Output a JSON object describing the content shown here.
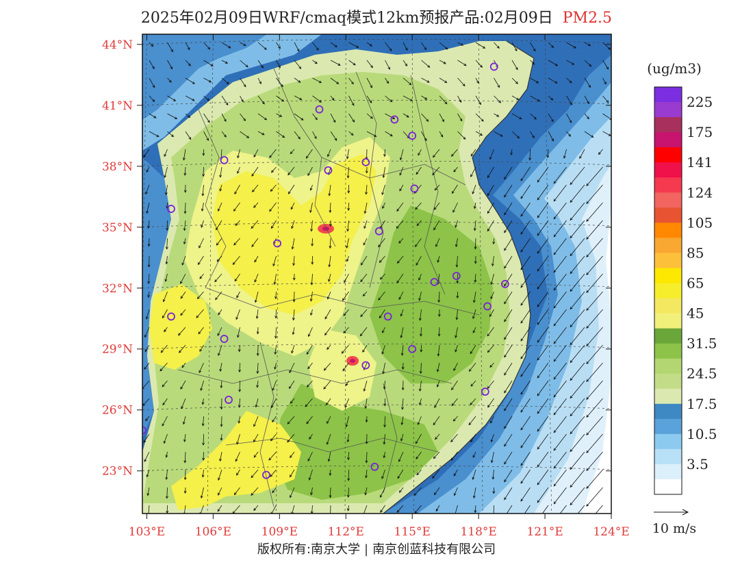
{
  "title": {
    "main": "2025年02月09日WRF/cmaq模式12km预报产品:02月09日",
    "pollutant": "PM2.5"
  },
  "map": {
    "lat_labels": [
      "23°N",
      "26°N",
      "29°N",
      "32°N",
      "35°N",
      "38°N",
      "41°N",
      "44°N"
    ],
    "lon_labels": [
      "103°E",
      "106°E",
      "109°E",
      "112°E",
      "115°E",
      "118°E",
      "121°E",
      "124°E"
    ],
    "label_color": "#e03a3a",
    "ocean_colors": [
      "#2f6fb8",
      "#4a8fce",
      "#7fbde8",
      "#b9def4",
      "#dff0fa",
      "#ffffff"
    ],
    "land_colors": [
      "#6aa63a",
      "#8cc348",
      "#b9da7a",
      "#dbe9b0",
      "#eef38a",
      "#f5f04a",
      "#f8e35a"
    ],
    "hotspot_color": "#f04a4a",
    "city_marker_color": "#7a22d6",
    "cities": [
      {
        "lon": 118.7,
        "lat": 42.9
      },
      {
        "lon": 110.8,
        "lat": 40.8
      },
      {
        "lon": 114.2,
        "lat": 40.3
      },
      {
        "lon": 115.0,
        "lat": 39.5
      },
      {
        "lon": 106.5,
        "lat": 38.3
      },
      {
        "lon": 111.2,
        "lat": 37.8
      },
      {
        "lon": 112.9,
        "lat": 38.2
      },
      {
        "lon": 115.1,
        "lat": 36.9
      },
      {
        "lon": 104.1,
        "lat": 35.9
      },
      {
        "lon": 113.5,
        "lat": 34.8
      },
      {
        "lon": 108.9,
        "lat": 34.2
      },
      {
        "lon": 117.0,
        "lat": 32.6
      },
      {
        "lon": 116.0,
        "lat": 32.3
      },
      {
        "lon": 119.2,
        "lat": 32.2
      },
      {
        "lon": 118.4,
        "lat": 31.1
      },
      {
        "lon": 104.1,
        "lat": 30.6
      },
      {
        "lon": 113.9,
        "lat": 30.6
      },
      {
        "lon": 106.5,
        "lat": 29.5
      },
      {
        "lon": 115.0,
        "lat": 29.0
      },
      {
        "lon": 112.9,
        "lat": 28.2
      },
      {
        "lon": 118.3,
        "lat": 26.9
      },
      {
        "lon": 106.7,
        "lat": 26.5
      },
      {
        "lon": 102.8,
        "lat": 25.0
      },
      {
        "lon": 108.4,
        "lat": 22.8
      },
      {
        "lon": 113.3,
        "lat": 23.2
      }
    ]
  },
  "colorbar": {
    "units": "(ug/m3)",
    "colors": [
      "#7b2fe0",
      "#9a3bd0",
      "#a8305c",
      "#c8146e",
      "#ff0000",
      "#f0104a",
      "#f53a50",
      "#f26460",
      "#e85432",
      "#ff8800",
      "#f9a832",
      "#fdc03a",
      "#fce800",
      "#f6ee2a",
      "#f4e860",
      "#f0f07a",
      "#6aa63a",
      "#8cc348",
      "#b4d672",
      "#c3dc88",
      "#dbe9b0",
      "#3e88c4",
      "#5aa2da",
      "#8dcaf0",
      "#b8e0f6",
      "#dbf0fb",
      "#ffffff"
    ],
    "labels": [
      "225",
      "175",
      "141",
      "124",
      "105",
      "85",
      "65",
      "45",
      "31.5",
      "24.5",
      "17.5",
      "10.5",
      "3.5"
    ]
  },
  "wind_legend": {
    "label": "10 m/s"
  },
  "copyright": {
    "owner1": "版权所有:南京大学",
    "owner2": "南京创蓝科技有限公司"
  }
}
